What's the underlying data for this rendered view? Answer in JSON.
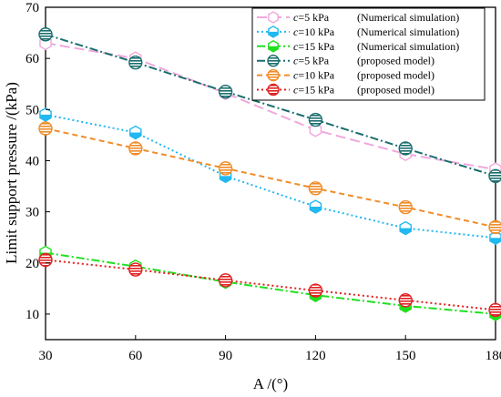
{
  "chart_data": {
    "type": "line",
    "xlabel": "A /(°)",
    "ylabel": "Limit support pressure /(kPa)",
    "xlim": [
      30,
      180
    ],
    "ylim": [
      5,
      70
    ],
    "xticks": [
      30,
      60,
      90,
      120,
      150,
      180
    ],
    "yticks": [
      10,
      20,
      30,
      40,
      50,
      60,
      70
    ],
    "x": [
      30,
      60,
      90,
      120,
      150,
      180
    ],
    "grid": false,
    "legend_position": "top-right",
    "series": [
      {
        "name_prefix": "c",
        "name_value": "=5 kPa",
        "name_suffix": "(Numerical simulation)",
        "values": [
          63.0,
          60.0,
          53.2,
          46.0,
          41.3,
          38.3
        ],
        "color": "#f0a8dc",
        "line_style": "dash-long",
        "marker": "hexagon-open"
      },
      {
        "name_prefix": "c",
        "name_value": "=10 kPa",
        "name_suffix": "(Numerical simulation)",
        "values": [
          49.0,
          45.5,
          37.0,
          31.0,
          26.8,
          24.9
        ],
        "color": "#22b8f0",
        "line_style": "dot",
        "marker": "hexagon-half"
      },
      {
        "name_prefix": "c",
        "name_value": "=15 kPa",
        "name_suffix": "(Numerical simulation)",
        "values": [
          22.0,
          19.3,
          16.3,
          13.7,
          11.6,
          10.0
        ],
        "color": "#1fe01f",
        "line_style": "dash-dot",
        "marker": "hexagon-half"
      },
      {
        "name_prefix": "c",
        "name_value": "=5 kPa",
        "name_suffix": "(proposed model)",
        "values": [
          64.7,
          59.2,
          53.5,
          48.0,
          42.4,
          37.0
        ],
        "color": "#1a6e6e",
        "line_style": "dash-dot",
        "marker": "circle-striped"
      },
      {
        "name_prefix": "c",
        "name_value": "=10 kPa",
        "name_suffix": "(proposed model)",
        "values": [
          46.3,
          42.4,
          38.5,
          34.6,
          30.9,
          27.0
        ],
        "color": "#f08c28",
        "line_style": "dash",
        "marker": "circle-striped"
      },
      {
        "name_prefix": "c",
        "name_value": "=15 kPa",
        "name_suffix": "(proposed model)",
        "values": [
          20.6,
          18.7,
          16.6,
          14.6,
          12.7,
          10.8
        ],
        "color": "#e02020",
        "line_style": "dot",
        "marker": "circle-striped"
      }
    ]
  }
}
